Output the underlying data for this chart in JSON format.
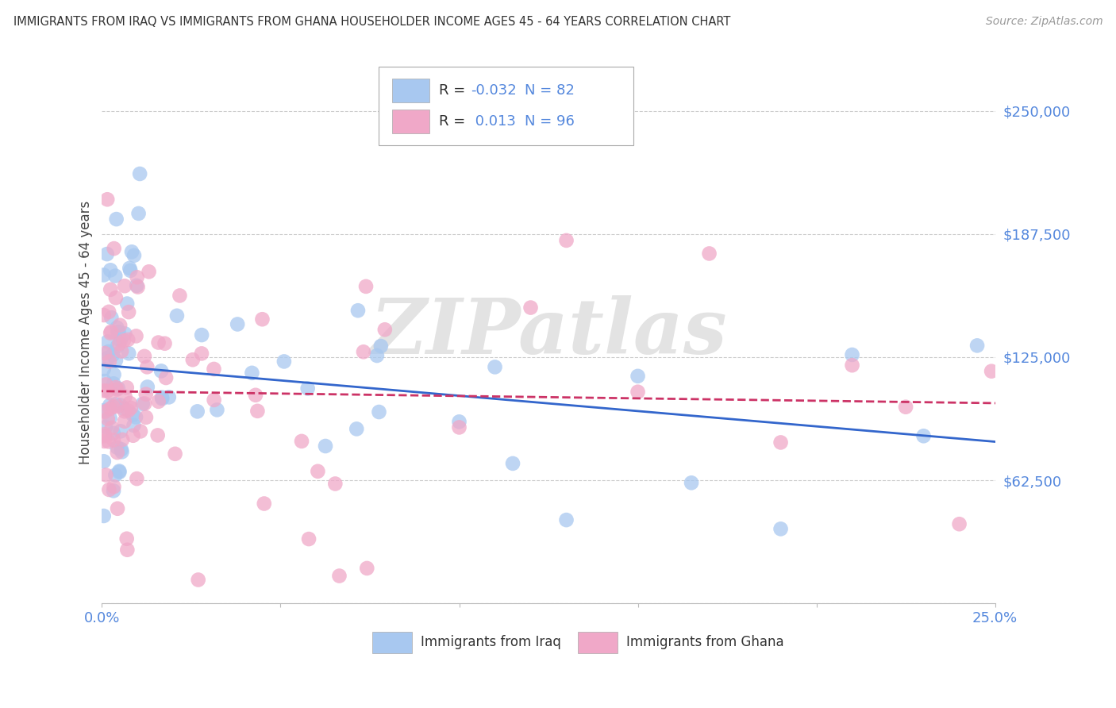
{
  "title": "IMMIGRANTS FROM IRAQ VS IMMIGRANTS FROM GHANA HOUSEHOLDER INCOME AGES 45 - 64 YEARS CORRELATION CHART",
  "source": "Source: ZipAtlas.com",
  "ylabel": "Householder Income Ages 45 - 64 years",
  "xlim": [
    0.0,
    0.25
  ],
  "ylim": [
    0,
    275000
  ],
  "yticks": [
    0,
    62500,
    125000,
    187500,
    250000
  ],
  "ytick_labels": [
    "",
    "$62,500",
    "$125,000",
    "$187,500",
    "$250,000"
  ],
  "xtick_labels": [
    "0.0%",
    "",
    "",
    "",
    "",
    "25.0%"
  ],
  "iraq_R": -0.032,
  "iraq_N": 82,
  "ghana_R": 0.013,
  "ghana_N": 96,
  "iraq_color": "#a8c8f0",
  "ghana_color": "#f0a8c8",
  "iraq_line_color": "#3366cc",
  "ghana_line_color": "#cc3366",
  "background_color": "#ffffff",
  "grid_color": "#cccccc",
  "watermark": "ZIPatlas",
  "legend_box_color": "#bbbbbb",
  "tick_color": "#5588dd",
  "title_color": "#333333",
  "source_color": "#999999",
  "label_color": "#444444",
  "bottom_legend_label1": "Immigrants from Iraq",
  "bottom_legend_label2": "Immigrants from Ghana"
}
